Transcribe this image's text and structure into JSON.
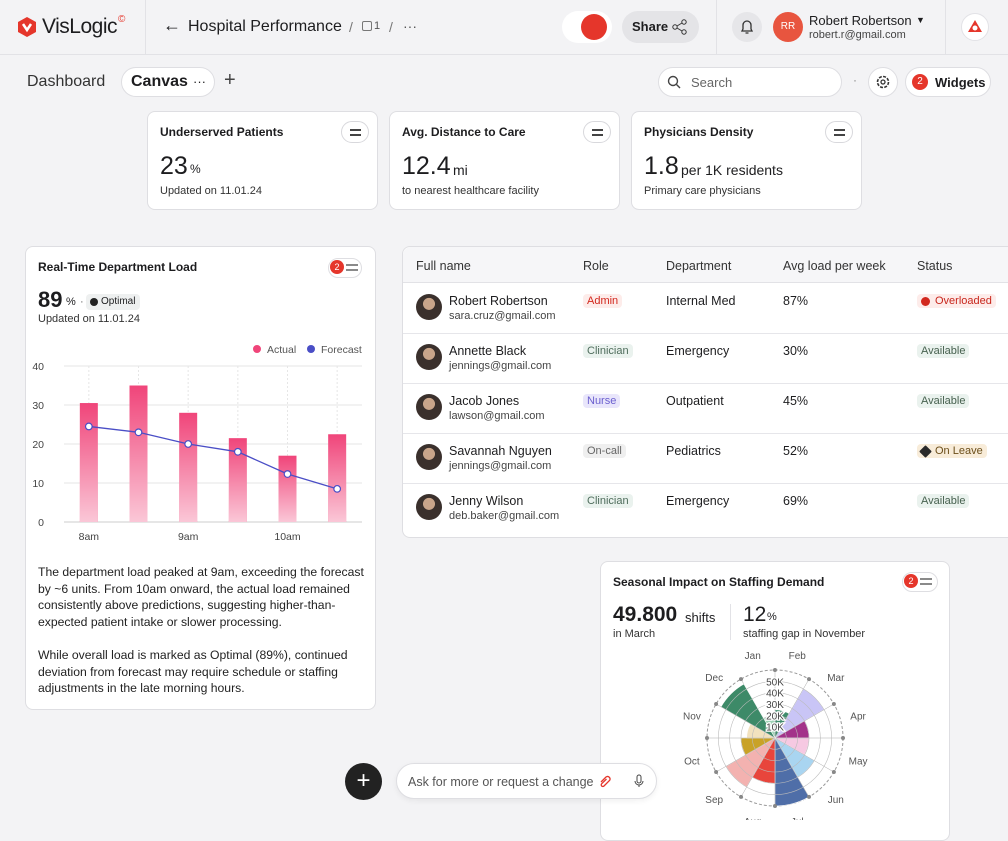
{
  "header": {
    "brand": "VisLogic",
    "brand_mark": "©",
    "title": "Hospital Performance",
    "crumb_sep": "/",
    "page_count": "1",
    "more": "···",
    "share": "Share",
    "avatar": "RR",
    "user_name": "Robert Robertson",
    "user_email": "robert.r@gmail.com"
  },
  "toolbar": {
    "tab_dashboard": "Dashboard",
    "tab_canvas": "Canvas",
    "tab_more": "···",
    "add": "+",
    "search": "Search",
    "widgets_count": "2",
    "widgets": "Widgets"
  },
  "kpis": [
    {
      "title": "Underserved Patients",
      "value": "23",
      "unit": "%",
      "note": "Updated on 11.01.24"
    },
    {
      "title": "Avg. Distance to Care",
      "value": "12.4",
      "unit": "mi",
      "note": "to nearest healthcare facility"
    },
    {
      "title": "Physicians Density",
      "value": "1.8",
      "unit": "per 1K residents",
      "note": "Primary care physicians"
    }
  ],
  "load_widget": {
    "title": "Real-Time Department Load",
    "badge": "2",
    "value": "89",
    "unit": "%",
    "sep": "·",
    "status": "Optimal",
    "note": "Updated on 11.01.24",
    "paragraphs": [
      "The department load peaked at 9am, exceeding the forecast by ~6 units. From 10am onward, the actual load remained consistently above predictions, suggesting higher-than-expected patient intake or slower processing.",
      "While overall load is marked as Optimal (89%), continued deviation from forecast may require schedule or staffing adjustments in the late morning hours."
    ]
  },
  "table": {
    "columns": [
      "Full name",
      "Role",
      "Department",
      "Avg load per week",
      "Status"
    ],
    "rows": [
      {
        "name": "Robert Robertson",
        "email": "sara.cruz@gmail.com",
        "role": "Admin",
        "department": "Internal Med",
        "load": "87%",
        "status": "Overloaded"
      },
      {
        "name": "Annette Black",
        "email": "jennings@gmail.com",
        "role": "Clinician",
        "department": "Emergency",
        "load": "30%",
        "status": "Available"
      },
      {
        "name": "Jacob Jones",
        "email": "lawson@gmail.com",
        "role": "Nurse",
        "department": "Outpatient",
        "load": "45%",
        "status": "Available"
      },
      {
        "name": "Savannah Nguyen",
        "email": "jennings@gmail.com",
        "role": "On-call",
        "department": "Pediatrics",
        "load": "52%",
        "status": "On Leave"
      },
      {
        "name": "Jenny Wilson",
        "email": "deb.baker@gmail.com",
        "role": "Clinician",
        "department": "Emergency",
        "load": "69%",
        "status": "Available"
      }
    ]
  },
  "seasonal_widget": {
    "title": "Seasonal Impact on Staffing Demand",
    "badge": "2",
    "value1": "49.800",
    "unit1": "shifts",
    "note1": "in March",
    "value2": "12",
    "unit2": "%",
    "note2": "staffing gap in November"
  },
  "prompt": {
    "placeholder": "Ask for more or request a change",
    "plus": "+"
  },
  "chart_data": [
    {
      "type": "bar",
      "categories": [
        "8am",
        null,
        "9am",
        null,
        "10am",
        null
      ],
      "series": [
        {
          "name": "Actual",
          "type": "bar",
          "color": "#f0457a",
          "values": [
            30.5,
            35,
            28,
            21.5,
            17,
            22.5
          ]
        },
        {
          "name": "Forecast",
          "type": "line",
          "color": "#4a4ec6",
          "values": [
            24.5,
            23,
            20,
            18,
            12.3,
            8.5
          ]
        }
      ],
      "ylim": [
        0,
        40
      ],
      "yticks": [
        0,
        10,
        20,
        30,
        40
      ],
      "grid": true,
      "legend": "top-right"
    },
    {
      "type": "polar",
      "categories": [
        "Jan",
        "Feb",
        "Mar",
        "Apr",
        "May",
        "Jun",
        "Jul",
        "Aug",
        "Sep",
        "Oct",
        "Nov",
        "Dec"
      ],
      "values": [
        20000,
        25000,
        50000,
        30000,
        30000,
        40000,
        60000,
        40000,
        50000,
        30000,
        25000,
        55000
      ],
      "colors": [
        "#9fd3b6",
        "#3f8c6c",
        "#c9c5f6",
        "#a3338a",
        "#f6c9e2",
        "#a9d5f1",
        "#4f6ea8",
        "#e8453c",
        "#f3b2b0",
        "#c9a227",
        "#f2e2bf",
        "#3d8a68"
      ],
      "rlim": [
        0,
        60000
      ],
      "rticks": [
        {
          "value": 10000,
          "label": "10K"
        },
        {
          "value": 20000,
          "label": "20K"
        },
        {
          "value": 30000,
          "label": "30K"
        },
        {
          "value": 40000,
          "label": "40K"
        },
        {
          "value": 50000,
          "label": "50K"
        }
      ]
    }
  ]
}
